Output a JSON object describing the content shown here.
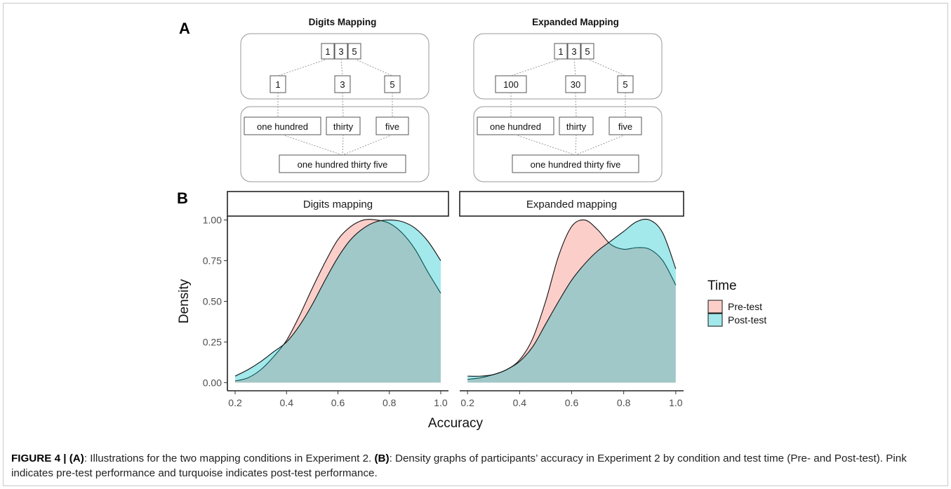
{
  "panel_labels": {
    "a": "A",
    "b": "B"
  },
  "panel_a": {
    "digits": {
      "title": "Digits Mapping",
      "number_digits": [
        "1",
        "3",
        "5"
      ],
      "place_values": [
        "1",
        "3",
        "5"
      ],
      "words": [
        "one hundred",
        "thirty",
        "five"
      ],
      "full_words": "one hundred thirty five"
    },
    "expanded": {
      "title": "Expanded Mapping",
      "number_digits": [
        "1",
        "3",
        "5"
      ],
      "place_values": [
        "100",
        "30",
        "5"
      ],
      "words": [
        "one hundred",
        "thirty",
        "five"
      ],
      "full_words": "one hundred thirty five"
    }
  },
  "chart_data": {
    "type": "area",
    "xlabel": "Accuracy",
    "ylabel": "Density",
    "xlim": [
      0.2,
      1.0
    ],
    "ylim": [
      0,
      1.0
    ],
    "x_ticks": [
      "0.2",
      "0.4",
      "0.6",
      "0.8",
      "1.0"
    ],
    "y_ticks": [
      "0.00",
      "0.25",
      "0.50",
      "0.75",
      "1.00"
    ],
    "legend": {
      "title": "Time",
      "placement": "right",
      "entries": [
        "Pre-test",
        "Post-test"
      ]
    },
    "colors": {
      "Pre-test": "#F8766D",
      "Post-test": "#00BFC4"
    },
    "grid": false,
    "facets": [
      {
        "strip": "Digits mapping",
        "x": [
          0.2,
          0.25,
          0.3,
          0.35,
          0.4,
          0.45,
          0.5,
          0.55,
          0.6,
          0.65,
          0.7,
          0.75,
          0.8,
          0.85,
          0.9,
          0.95,
          1.0
        ],
        "series": [
          {
            "name": "Pre-test",
            "values": [
              0.01,
              0.03,
              0.08,
              0.16,
              0.26,
              0.41,
              0.58,
              0.74,
              0.88,
              0.96,
              1.0,
              1.0,
              0.98,
              0.92,
              0.82,
              0.68,
              0.55
            ]
          },
          {
            "name": "Post-test",
            "values": [
              0.04,
              0.08,
              0.13,
              0.19,
              0.25,
              0.35,
              0.48,
              0.63,
              0.77,
              0.88,
              0.95,
              0.99,
              1.0,
              0.99,
              0.95,
              0.87,
              0.75
            ]
          }
        ]
      },
      {
        "strip": "Expanded mapping",
        "x": [
          0.2,
          0.25,
          0.3,
          0.35,
          0.4,
          0.45,
          0.5,
          0.55,
          0.6,
          0.65,
          0.7,
          0.75,
          0.8,
          0.85,
          0.9,
          0.95,
          1.0
        ],
        "series": [
          {
            "name": "Pre-test",
            "values": [
              0.02,
              0.03,
              0.05,
              0.08,
              0.14,
              0.27,
              0.5,
              0.78,
              0.96,
              1.0,
              0.94,
              0.85,
              0.82,
              0.83,
              0.82,
              0.75,
              0.6
            ]
          },
          {
            "name": "Post-test",
            "values": [
              0.04,
              0.04,
              0.05,
              0.08,
              0.13,
              0.22,
              0.36,
              0.5,
              0.63,
              0.73,
              0.81,
              0.87,
              0.93,
              0.99,
              1.0,
              0.92,
              0.7
            ]
          }
        ]
      }
    ]
  },
  "caption": {
    "label": "FIGURE 4 | (A)",
    "part_a_text": ": Illustrations for the two mapping conditions in Experiment 2. ",
    "label_b": "(B)",
    "part_b_text": ": Density graphs of participants’ accuracy in Experiment 2 by condition and test time (Pre- and Post-test). Pink indicates pre-test performance and turquoise indicates post-test performance."
  }
}
